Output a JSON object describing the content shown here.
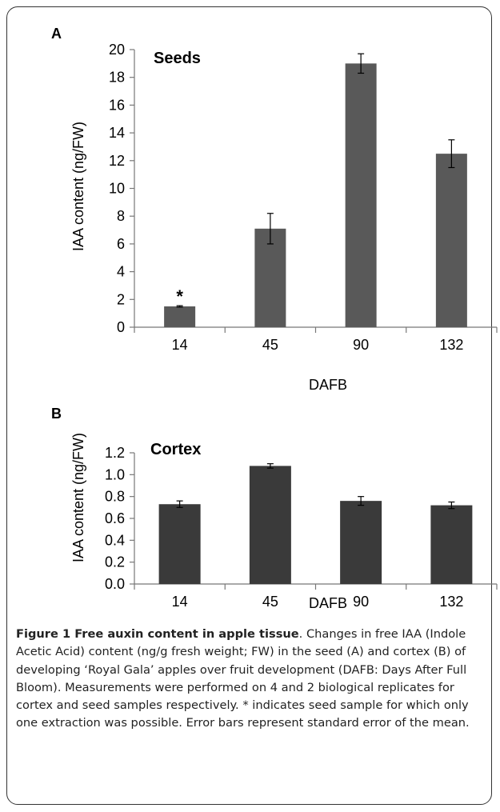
{
  "chart_data": [
    {
      "panel_label": "A",
      "type": "bar",
      "title": "Seeds",
      "categories": [
        "14",
        "45",
        "90",
        "132"
      ],
      "values": [
        1.5,
        7.1,
        19.0,
        12.5
      ],
      "errors": [
        0.05,
        1.1,
        0.7,
        1.0
      ],
      "annotations": [
        {
          "category": "14",
          "text": "*"
        }
      ],
      "ylabel": "IAA content  (ng/FW)",
      "xlabel": "DAFB",
      "ylim": [
        0,
        20
      ],
      "yticks": [
        "0",
        "2",
        "4",
        "6",
        "8",
        "10",
        "12",
        "14",
        "16",
        "18",
        "20"
      ],
      "bar_color": "#595959",
      "grid": false
    },
    {
      "panel_label": "B",
      "type": "bar",
      "title": "Cortex",
      "categories": [
        "14",
        "45",
        "90",
        "132"
      ],
      "values": [
        0.73,
        1.08,
        0.76,
        0.72
      ],
      "errors": [
        0.03,
        0.02,
        0.04,
        0.03
      ],
      "ylabel": "IAA content  (ng/FW)",
      "xlabel": "DAFB",
      "ylim": [
        0,
        1.2
      ],
      "yticks": [
        "0.0",
        "0.2",
        "0.4",
        "0.6",
        "0.8",
        "1.0",
        "1.2"
      ],
      "bar_color": "#3a3a3a",
      "grid": false
    }
  ],
  "caption": {
    "title": "Figure 1 Free auxin content in apple tissue",
    "text": ". Changes in free IAA (Indole Acetic Acid) content (ng/g fresh weight; FW) in the seed (A) and cortex (B) of developing ‘Royal Gala’ apples over fruit development (DAFB: Days After Full Bloom). Measurements were performed on 4 and 2 biological replicates for cortex and seed samples respectively. * indicates seed sample for which only one extraction was possible. Error bars represent standard error of the mean."
  }
}
